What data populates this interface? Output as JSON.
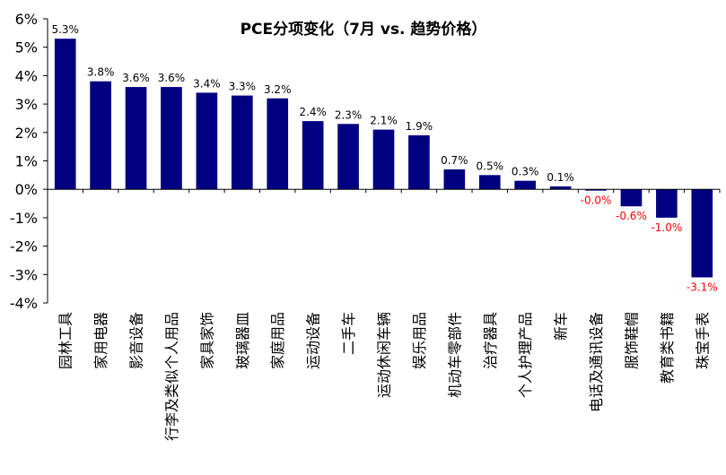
{
  "chart_data": {
    "type": "bar",
    "title": "PCE分项变化（7月 vs. 趋势价格）",
    "xlabel": "",
    "ylabel": "",
    "ylim": [
      -4,
      6
    ],
    "yticks": [
      -4,
      -3,
      -2,
      -1,
      0,
      1,
      2,
      3,
      4,
      5,
      6
    ],
    "ytick_labels": [
      "-4%",
      "-3%",
      "-2%",
      "-1%",
      "0%",
      "1%",
      "2%",
      "3%",
      "4%",
      "5%",
      "6%"
    ],
    "grid": false,
    "legend": "none",
    "categories": [
      "园林工具",
      "家用电器",
      "影音设备",
      "行李及类似个人用品",
      "家具家饰",
      "玻璃器皿",
      "家庭用品",
      "运动设备",
      "二手车",
      "运动休闲车辆",
      "娱乐用品",
      "机动车零部件",
      "治疗器具",
      "个人护理产品",
      "新车",
      "电话及通讯设备",
      "服饰鞋帽",
      "教育类书籍",
      "珠宝手表"
    ],
    "values": [
      5.3,
      3.8,
      3.6,
      3.6,
      3.4,
      3.3,
      3.2,
      2.4,
      2.3,
      2.1,
      1.9,
      0.7,
      0.5,
      0.3,
      0.1,
      -0.02,
      -0.6,
      -1.0,
      -3.1
    ],
    "data_labels": [
      "5.3%",
      "3.8%",
      "3.6%",
      "3.6%",
      "3.4%",
      "3.3%",
      "3.2%",
      "2.4%",
      "2.3%",
      "2.1%",
      "1.9%",
      "0.7%",
      "0.5%",
      "0.3%",
      "0.1%",
      "-0.0%",
      "-0.6%",
      "-1.0%",
      "-3.1%"
    ],
    "colors": {
      "bar": "#000080",
      "positive_label": "#000000",
      "negative_label": "#ff0000",
      "axis": "#000000"
    }
  }
}
